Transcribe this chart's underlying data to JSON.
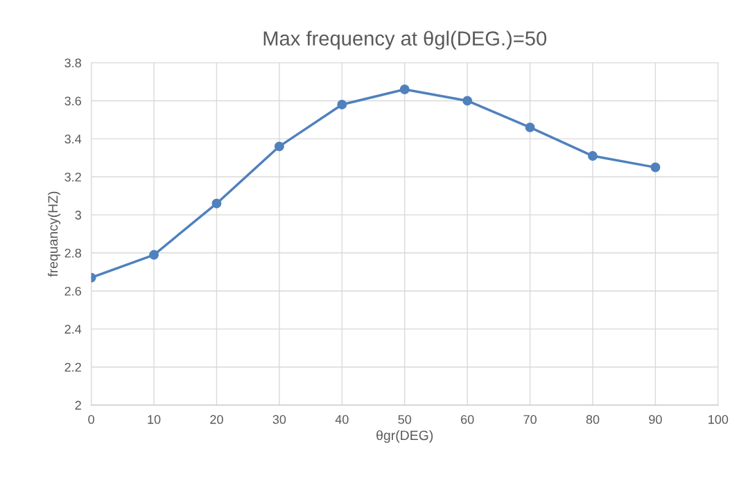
{
  "chart_data": {
    "type": "line",
    "title": "Max frequency at θgl(DEG.)=50",
    "xlabel": "θgr(DEG)",
    "ylabel": "frequancy(HZ)",
    "x": [
      0,
      10,
      20,
      30,
      40,
      50,
      60,
      70,
      80,
      90
    ],
    "series": [
      {
        "color": "#4f81bd",
        "values": [
          2.67,
          2.79,
          3.06,
          3.36,
          3.58,
          3.66,
          3.6,
          3.46,
          3.31,
          3.25
        ]
      }
    ],
    "xlim": [
      0,
      100
    ],
    "xticks": [
      0,
      10,
      20,
      30,
      40,
      50,
      60,
      70,
      80,
      90,
      100
    ],
    "ylim": [
      2,
      3.8
    ],
    "yticks": [
      {
        "value": 2,
        "label": "2"
      },
      {
        "value": 2.2,
        "label": "2.2"
      },
      {
        "value": 2.4,
        "label": "2.4"
      },
      {
        "value": 2.6,
        "label": "2.6"
      },
      {
        "value": 2.8,
        "label": "2.8"
      },
      {
        "value": 3,
        "label": "3"
      },
      {
        "value": 3.2,
        "label": "3.2"
      },
      {
        "value": 3.4,
        "label": "3.4"
      },
      {
        "value": 3.6,
        "label": "3.6"
      },
      {
        "value": 3.8,
        "label": "3.8"
      }
    ],
    "grid": true,
    "marker": "circle",
    "line_style": "solid",
    "legend": false
  }
}
